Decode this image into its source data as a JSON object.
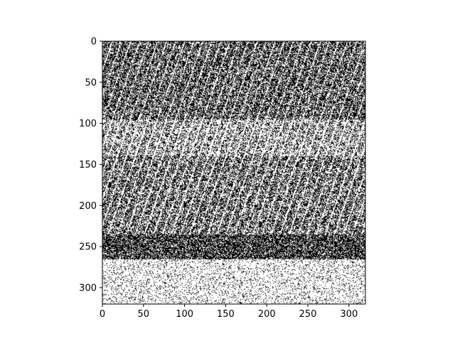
{
  "chart_data": {
    "type": "heatmap",
    "title": "",
    "xlabel": "",
    "ylabel": "",
    "xlim": [
      0,
      320
    ],
    "ylim": [
      320,
      0
    ],
    "x_ticks": [
      0,
      50,
      100,
      150,
      200,
      250,
      300
    ],
    "y_ticks": [
      0,
      50,
      100,
      150,
      200,
      250,
      300
    ],
    "colormap": [
      "#000000",
      "#ffffff"
    ],
    "image_description_bands": [
      {
        "rows": [
          0,
          95
        ],
        "white_fraction": 0.38,
        "streaks": true
      },
      {
        "rows": [
          95,
          140
        ],
        "white_fraction": 0.6,
        "streaks": true
      },
      {
        "rows": [
          140,
          235
        ],
        "white_fraction": 0.45,
        "streaks": true
      },
      {
        "rows": [
          235,
          265
        ],
        "white_fraction": 0.3,
        "streaks": false
      },
      {
        "rows": [
          265,
          320
        ],
        "white_fraction": 0.85,
        "streaks": false
      }
    ]
  },
  "colors": {
    "axis": "#000000",
    "background": "#ffffff"
  }
}
